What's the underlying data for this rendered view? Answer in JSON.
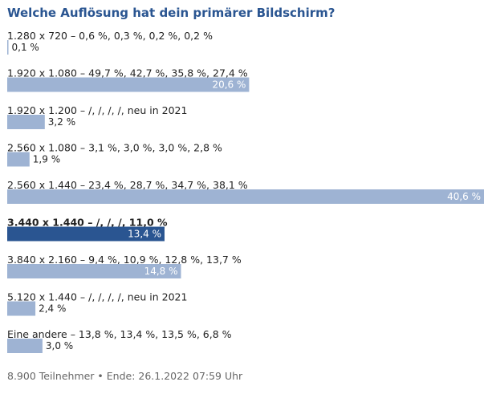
{
  "title": "Welche Auflösung hat dein primärer Bildschirm?",
  "chart_data": {
    "type": "bar",
    "orientation": "horizontal",
    "title": "Welche Auflösung hat dein primärer Bildschirm?",
    "unit": "%",
    "xlim": [
      0,
      40.6
    ],
    "categories": [
      "1.280 x 720 – 0,6 %, 0,3 %, 0,2 %, 0,2 %",
      "1.920 x 1.080 – 49,7 %, 42,7 %, 35,8 %, 27,4 %",
      "1.920 x 1.200 – /, /, /, /, neu in 2021",
      "2.560 x 1.080 – 3,1 %, 3,0 %, 3,0 %, 2,8 %",
      "2.560 x 1.440 – 23,4 %, 28,7 %, 34,7 %, 38,1 %",
      "3.440 x 1.440 – /, /, /, 11,0 %",
      "3.840 x 2.160 – 9,4 %, 10,9 %, 12,8 %, 13,7 %",
      "5.120 x 1.440 – /, /, /, /, neu in 2021",
      "Eine andere – 13,8 %, 13,4 %, 13,5 %, 6,8 %"
    ],
    "values": [
      0.1,
      20.6,
      3.2,
      1.9,
      40.6,
      13.4,
      14.8,
      2.4,
      3.0
    ],
    "value_labels": [
      "0,1 %",
      "20,6 %",
      "3,2 %",
      "1,9 %",
      "40,6 %",
      "13,4 %",
      "14,8 %",
      "2,4 %",
      "3,0 %"
    ],
    "highlighted_index": 5
  },
  "colors": {
    "title": "#2a5591",
    "bar": "#9eb3d3",
    "bar_highlight": "#2a5591",
    "text": "#222222",
    "label_inside": "#ffffff",
    "footer": "#666666"
  },
  "footer": {
    "text": "8.900 Teilnehmer  •  Ende: 26.1.2022 07:59 Uhr"
  }
}
